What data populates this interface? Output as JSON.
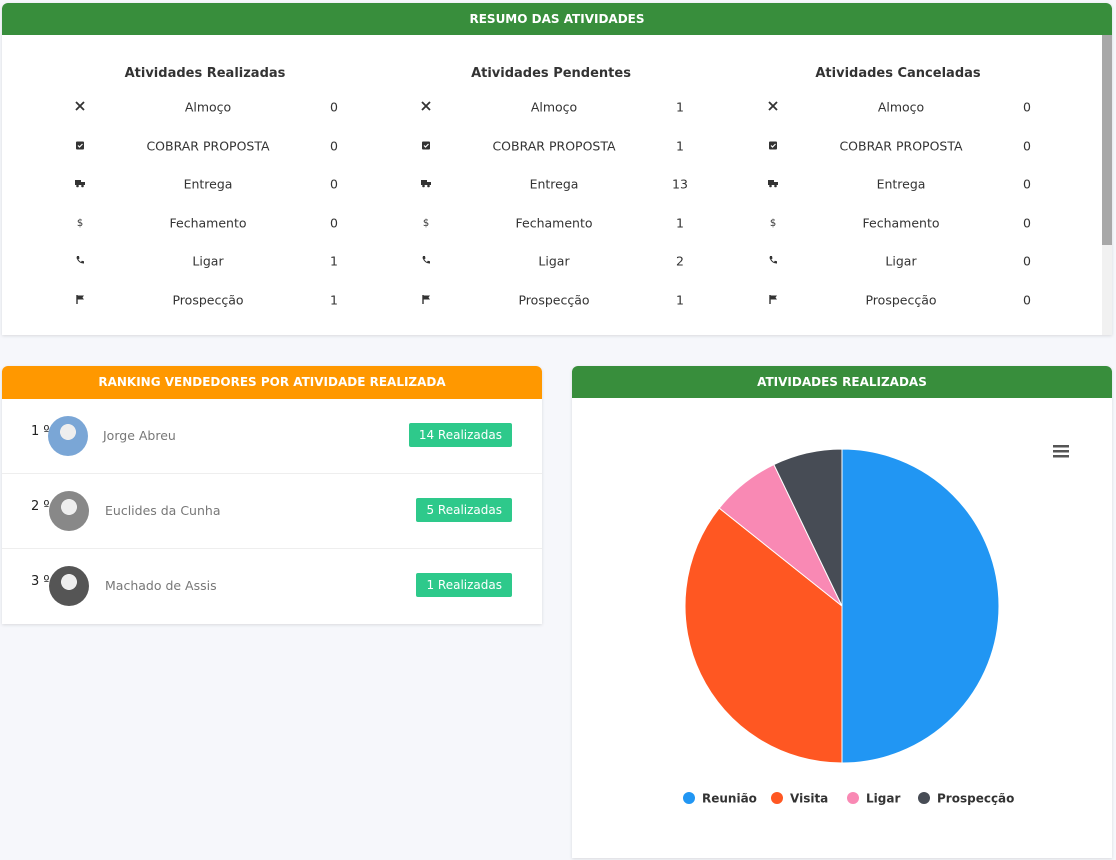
{
  "summary": {
    "title": "RESUMO DAS ATIVIDADES",
    "columns": [
      {
        "title": "Atividades Realizadas",
        "rows": [
          {
            "label": "Almoço",
            "value": "0"
          },
          {
            "label": "COBRAR PROPOSTA",
            "value": "0"
          },
          {
            "label": "Entrega",
            "value": "0"
          },
          {
            "label": "Fechamento",
            "value": "0"
          },
          {
            "label": "Ligar",
            "value": "1"
          },
          {
            "label": "Prospecção",
            "value": "1"
          }
        ]
      },
      {
        "title": "Atividades Pendentes",
        "rows": [
          {
            "label": "Almoço",
            "value": "1"
          },
          {
            "label": "COBRAR PROPOSTA",
            "value": "1"
          },
          {
            "label": "Entrega",
            "value": "13"
          },
          {
            "label": "Fechamento",
            "value": "1"
          },
          {
            "label": "Ligar",
            "value": "2"
          },
          {
            "label": "Prospecção",
            "value": "1"
          }
        ]
      },
      {
        "title": "Atividades Canceladas",
        "rows": [
          {
            "label": "Almoço",
            "value": "0"
          },
          {
            "label": "COBRAR PROPOSTA",
            "value": "0"
          },
          {
            "label": "Entrega",
            "value": "0"
          },
          {
            "label": "Fechamento",
            "value": "0"
          },
          {
            "label": "Ligar",
            "value": "0"
          },
          {
            "label": "Prospecção",
            "value": "0"
          }
        ]
      }
    ]
  },
  "ranking": {
    "title": "RANKING VENDEDORES POR ATIVIDADE REALIZADA",
    "rows": [
      {
        "position": "1 º",
        "name": "Jorge Abreu",
        "badge": "14 Realizadas"
      },
      {
        "position": "2 º",
        "name": "Euclides da Cunha",
        "badge": "5 Realizadas"
      },
      {
        "position": "3 º",
        "name": "Machado de Assis",
        "badge": "1 Realizadas"
      }
    ]
  },
  "chart_data": {
    "type": "pie",
    "title": "ATIVIDADES REALIZADAS",
    "categories": [
      "Reunião",
      "Visita",
      "Ligar",
      "Prospecção"
    ],
    "values": [
      7,
      5,
      1,
      1
    ],
    "colors": [
      "#2196f3",
      "#ff5722",
      "#f989b4",
      "#474c55"
    ]
  }
}
